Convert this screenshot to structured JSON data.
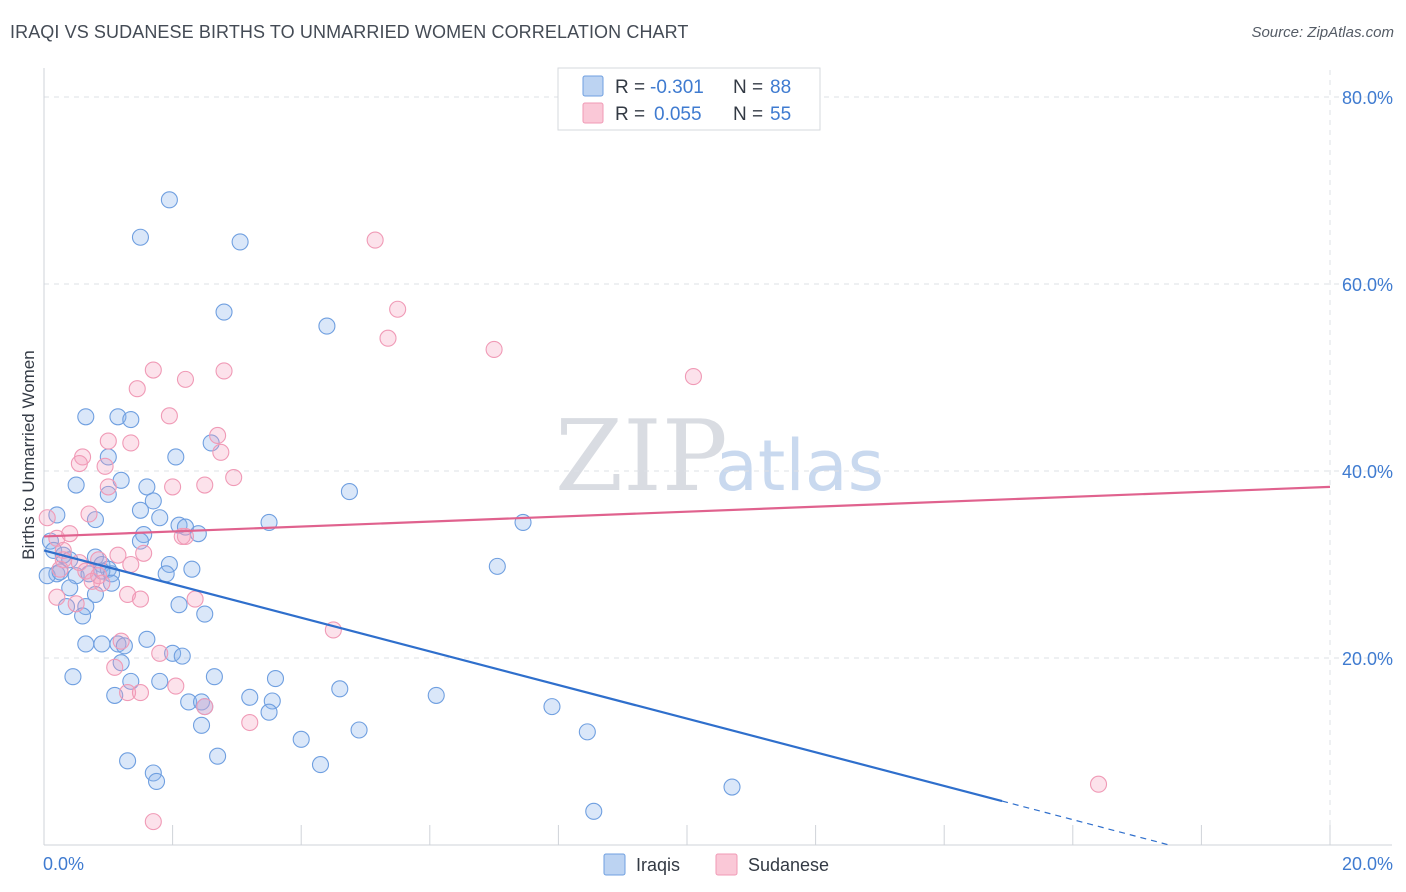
{
  "header": {
    "title": "IRAQI VS SUDANESE BIRTHS TO UNMARRIED WOMEN CORRELATION CHART",
    "source": "Source: ZipAtlas.com"
  },
  "watermark": {
    "zip": "ZIP",
    "atlas": "atlas"
  },
  "legend": {
    "r_label": "R =",
    "n_label": "N =",
    "items": [
      {
        "name": "Iraqis",
        "r": "-0.301",
        "n": "88",
        "color": "#6f9fe0"
      },
      {
        "name": "Sudanese",
        "r": "0.055",
        "n": "55",
        "color": "#f09ab6"
      }
    ]
  },
  "chart_data": {
    "type": "scatter",
    "title": "IRAQI VS SUDANESE BIRTHS TO UNMARRIED WOMEN CORRELATION CHART",
    "xlabel": "",
    "ylabel": "Births to Unmarried Women",
    "xlim": [
      0,
      20
    ],
    "ylim": [
      0,
      80
    ],
    "x_ticks": [
      0,
      20
    ],
    "x_tick_labels": [
      "0.0%",
      "20.0%"
    ],
    "y_ticks": [
      20,
      40,
      60,
      80
    ],
    "y_tick_labels": [
      "20.0%",
      "40.0%",
      "60.0%",
      "80.0%"
    ],
    "grid": true,
    "legend_position": "top-center",
    "series": [
      {
        "name": "Iraqis",
        "color": "#6f9fe0",
        "line_color": "#2f6fcc",
        "trend": {
          "x0": 0.0,
          "y0": 31.5,
          "x1": 14.9,
          "y1": 4.7,
          "dash_to_x": 17.5,
          "dash_to_y": 0.0
        },
        "points": [
          [
            1.95,
            69.0
          ],
          [
            1.5,
            65.0
          ],
          [
            3.05,
            64.5
          ],
          [
            2.8,
            57.0
          ],
          [
            4.4,
            55.5
          ],
          [
            0.65,
            45.8
          ],
          [
            1.15,
            45.8
          ],
          [
            1.35,
            45.5
          ],
          [
            2.6,
            43.0
          ],
          [
            2.05,
            41.5
          ],
          [
            1.0,
            41.5
          ],
          [
            0.5,
            38.5
          ],
          [
            1.2,
            39.0
          ],
          [
            1.6,
            38.3
          ],
          [
            4.75,
            37.8
          ],
          [
            1.0,
            37.5
          ],
          [
            1.7,
            36.8
          ],
          [
            1.5,
            35.8
          ],
          [
            0.8,
            34.8
          ],
          [
            1.8,
            35.0
          ],
          [
            2.1,
            34.2
          ],
          [
            2.2,
            34.0
          ],
          [
            3.5,
            34.5
          ],
          [
            7.45,
            34.5
          ],
          [
            0.2,
            35.3
          ],
          [
            1.55,
            33.2
          ],
          [
            2.4,
            33.3
          ],
          [
            0.1,
            32.5
          ],
          [
            0.15,
            31.5
          ],
          [
            0.3,
            31.0
          ],
          [
            0.8,
            30.8
          ],
          [
            1.5,
            32.5
          ],
          [
            0.4,
            30.5
          ],
          [
            0.9,
            30.0
          ],
          [
            1.0,
            29.5
          ],
          [
            1.95,
            30.0
          ],
          [
            0.2,
            29.0
          ],
          [
            0.05,
            28.8
          ],
          [
            0.25,
            29.2
          ],
          [
            0.5,
            28.8
          ],
          [
            0.7,
            29.0
          ],
          [
            0.9,
            29.3
          ],
          [
            1.05,
            29.0
          ],
          [
            1.9,
            29.0
          ],
          [
            7.05,
            29.8
          ],
          [
            0.4,
            27.5
          ],
          [
            1.05,
            28.0
          ],
          [
            0.8,
            26.8
          ],
          [
            0.65,
            25.5
          ],
          [
            0.35,
            25.5
          ],
          [
            2.1,
            25.7
          ],
          [
            2.5,
            24.7
          ],
          [
            0.6,
            24.5
          ],
          [
            0.65,
            21.5
          ],
          [
            0.9,
            21.5
          ],
          [
            1.15,
            21.5
          ],
          [
            1.25,
            21.3
          ],
          [
            1.6,
            22.0
          ],
          [
            2.0,
            20.5
          ],
          [
            2.15,
            20.2
          ],
          [
            1.2,
            19.5
          ],
          [
            0.45,
            18.0
          ],
          [
            2.65,
            18.0
          ],
          [
            3.6,
            17.8
          ],
          [
            1.35,
            17.5
          ],
          [
            1.8,
            17.5
          ],
          [
            4.6,
            16.7
          ],
          [
            1.1,
            16.0
          ],
          [
            3.2,
            15.8
          ],
          [
            6.1,
            16.0
          ],
          [
            2.25,
            15.3
          ],
          [
            2.45,
            15.3
          ],
          [
            3.55,
            15.4
          ],
          [
            2.5,
            14.8
          ],
          [
            3.5,
            14.2
          ],
          [
            7.9,
            14.8
          ],
          [
            2.45,
            12.8
          ],
          [
            4.9,
            12.3
          ],
          [
            8.45,
            12.1
          ],
          [
            4.0,
            11.3
          ],
          [
            2.7,
            9.5
          ],
          [
            1.3,
            9.0
          ],
          [
            4.3,
            8.6
          ],
          [
            1.7,
            7.7
          ],
          [
            1.75,
            6.8
          ],
          [
            10.7,
            6.2
          ],
          [
            8.55,
            3.6
          ],
          [
            2.3,
            29.5
          ]
        ]
      },
      {
        "name": "Sudanese",
        "color": "#f09ab6",
        "line_color": "#e0628e",
        "trend": {
          "x0": 0.0,
          "y0": 33.0,
          "x1": 20.0,
          "y1": 38.3
        },
        "points": [
          [
            5.15,
            64.7
          ],
          [
            5.5,
            57.3
          ],
          [
            5.35,
            54.2
          ],
          [
            7.0,
            53.0
          ],
          [
            10.1,
            50.1
          ],
          [
            1.7,
            50.8
          ],
          [
            2.8,
            50.7
          ],
          [
            2.2,
            49.8
          ],
          [
            1.45,
            48.8
          ],
          [
            1.95,
            45.9
          ],
          [
            2.7,
            43.8
          ],
          [
            1.0,
            43.2
          ],
          [
            1.35,
            43.0
          ],
          [
            2.75,
            42.0
          ],
          [
            0.6,
            41.5
          ],
          [
            0.55,
            40.8
          ],
          [
            0.95,
            40.5
          ],
          [
            2.95,
            39.3
          ],
          [
            1.0,
            38.3
          ],
          [
            2.0,
            38.3
          ],
          [
            2.5,
            38.5
          ],
          [
            0.7,
            35.4
          ],
          [
            0.05,
            35.0
          ],
          [
            0.4,
            33.3
          ],
          [
            0.2,
            32.8
          ],
          [
            0.3,
            31.5
          ],
          [
            1.15,
            31.0
          ],
          [
            1.55,
            31.2
          ],
          [
            2.15,
            33.0
          ],
          [
            0.3,
            30.5
          ],
          [
            0.55,
            30.2
          ],
          [
            0.85,
            30.5
          ],
          [
            1.35,
            30.0
          ],
          [
            0.25,
            29.5
          ],
          [
            0.65,
            29.3
          ],
          [
            0.85,
            28.8
          ],
          [
            0.75,
            28.2
          ],
          [
            0.9,
            28.0
          ],
          [
            1.3,
            26.8
          ],
          [
            1.5,
            26.3
          ],
          [
            2.35,
            26.3
          ],
          [
            0.2,
            26.5
          ],
          [
            4.5,
            23.0
          ],
          [
            1.2,
            21.8
          ],
          [
            1.8,
            20.5
          ],
          [
            1.1,
            19.0
          ],
          [
            1.3,
            16.3
          ],
          [
            2.05,
            17.0
          ],
          [
            1.5,
            16.3
          ],
          [
            2.5,
            14.8
          ],
          [
            3.2,
            13.1
          ],
          [
            1.7,
            2.5
          ],
          [
            16.4,
            6.5
          ],
          [
            0.5,
            25.8
          ],
          [
            2.2,
            33.0
          ]
        ]
      }
    ]
  }
}
